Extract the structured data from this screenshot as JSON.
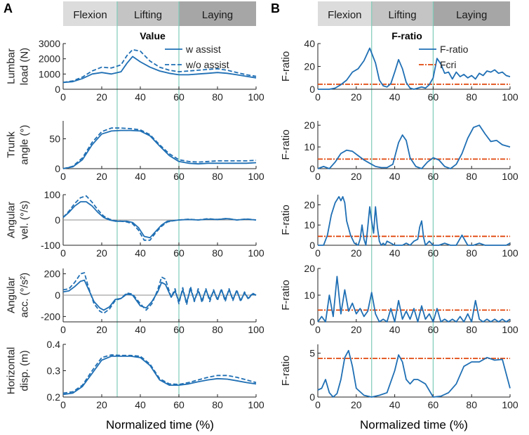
{
  "panel_labels": [
    "A",
    "B"
  ],
  "phases": [
    {
      "label": "Flexion",
      "color": "#dcdcdc"
    },
    {
      "label": "Lifting",
      "color": "#c4c4c4"
    },
    {
      "label": "Laying",
      "color": "#a6a6a6"
    }
  ],
  "x_axis_label": "Normalized time (%)",
  "colors": {
    "assist": "#1f6fb4",
    "fcri": "#e0470c",
    "phase_line": "#7ecbb8",
    "zero_line": "#8c8c8c"
  },
  "chart_data": [
    {
      "type": "line",
      "title": "Value",
      "ylabel": [
        "Lumbar",
        "load (N)"
      ],
      "xlim": [
        0,
        100
      ],
      "ylim": [
        0,
        3000
      ],
      "yticks": [
        0,
        1000,
        2000,
        3000
      ],
      "xticks": [
        0,
        20,
        40,
        60,
        80,
        100
      ],
      "legend": "top-right",
      "legend_entries": [
        "w assist",
        "w/o assist"
      ],
      "x": [
        0,
        5,
        10,
        15,
        20,
        25,
        30,
        33,
        36,
        40,
        45,
        50,
        55,
        60,
        65,
        70,
        75,
        80,
        85,
        90,
        95,
        100
      ],
      "series": [
        {
          "name": "w assist",
          "dash": false,
          "values": [
            450,
            500,
            700,
            1000,
            1100,
            1000,
            1150,
            1700,
            2150,
            1800,
            1450,
            1200,
            1050,
            950,
            950,
            1000,
            1050,
            1100,
            1050,
            950,
            850,
            750
          ]
        },
        {
          "name": "w/o assist",
          "dash": true,
          "values": [
            450,
            550,
            800,
            1200,
            1450,
            1400,
            1600,
            2200,
            2600,
            2500,
            1850,
            1450,
            1250,
            1150,
            1200,
            1250,
            1300,
            1350,
            1250,
            1100,
            950,
            850
          ]
        }
      ]
    },
    {
      "type": "line",
      "ylabel": [
        "Trunk",
        "angle (°)"
      ],
      "xlim": [
        0,
        100
      ],
      "ylim": [
        0,
        80
      ],
      "yticks": [
        0,
        50
      ],
      "xticks": [
        0,
        20,
        40,
        60,
        80,
        100
      ],
      "x": [
        0,
        5,
        10,
        15,
        20,
        25,
        30,
        35,
        40,
        45,
        50,
        55,
        60,
        65,
        70,
        75,
        80,
        85,
        90,
        95,
        100
      ],
      "series": [
        {
          "name": "w assist",
          "dash": false,
          "values": [
            0,
            3,
            15,
            40,
            58,
            63,
            64,
            64,
            63,
            55,
            38,
            22,
            12,
            9,
            8,
            9,
            9,
            9,
            9,
            9,
            10
          ]
        },
        {
          "name": "w/o assist",
          "dash": true,
          "values": [
            0,
            4,
            18,
            44,
            62,
            68,
            68,
            67,
            65,
            57,
            40,
            25,
            15,
            12,
            11,
            12,
            13,
            13,
            13,
            13,
            14
          ]
        }
      ]
    },
    {
      "type": "line",
      "ylabel": [
        "Angular",
        "vel. (°/s)"
      ],
      "xlim": [
        0,
        100
      ],
      "ylim": [
        -100,
        100
      ],
      "yticks": [
        -100,
        0,
        100
      ],
      "xticks": [
        0,
        20,
        40,
        60,
        80,
        100
      ],
      "zero_line": true,
      "x": [
        0,
        3,
        6,
        9,
        12,
        15,
        18,
        21,
        24,
        27,
        30,
        33,
        36,
        39,
        42,
        45,
        48,
        51,
        54,
        57,
        60,
        65,
        70,
        75,
        80,
        85,
        90,
        95,
        100
      ],
      "series": [
        {
          "name": "w assist",
          "dash": false,
          "values": [
            10,
            30,
            55,
            72,
            72,
            55,
            30,
            10,
            0,
            -5,
            -5,
            -5,
            -10,
            -30,
            -65,
            -70,
            -45,
            -20,
            -5,
            -3,
            0,
            2,
            0,
            3,
            2,
            5,
            0,
            3,
            0
          ]
        },
        {
          "name": "w/o assist",
          "dash": true,
          "values": [
            10,
            35,
            65,
            88,
            95,
            70,
            40,
            15,
            3,
            -3,
            -5,
            -8,
            -15,
            -40,
            -80,
            -80,
            -50,
            -25,
            -8,
            -3,
            0,
            3,
            0,
            5,
            2,
            6,
            0,
            4,
            0
          ]
        }
      ]
    },
    {
      "type": "line",
      "ylabel": [
        "Angular",
        "acc. (°/s²)"
      ],
      "xlim": [
        0,
        100
      ],
      "ylim": [
        -250,
        250
      ],
      "yticks": [
        -200,
        0,
        200
      ],
      "xticks": [
        0,
        20,
        40,
        60,
        80,
        100
      ],
      "zero_line": true,
      "x": [
        0,
        3,
        6,
        9,
        11,
        13,
        16,
        19,
        21,
        24,
        27,
        30,
        33,
        36,
        40,
        43,
        46,
        49,
        51,
        53,
        56,
        58,
        60,
        62,
        64,
        66,
        68,
        70,
        72,
        74,
        76,
        78,
        80,
        82,
        84,
        86,
        88,
        90,
        92,
        94,
        96,
        98,
        100
      ],
      "series": [
        {
          "name": "w assist",
          "dash": false,
          "values": [
            30,
            40,
            80,
            130,
            140,
            60,
            -60,
            -120,
            -140,
            -110,
            -40,
            -30,
            10,
            0,
            -100,
            -120,
            -60,
            30,
            120,
            100,
            -20,
            40,
            -60,
            50,
            -70,
            60,
            -50,
            40,
            -50,
            50,
            -40,
            40,
            -40,
            50,
            -40,
            50,
            -40,
            40,
            -50,
            20,
            -30,
            10,
            0
          ]
        },
        {
          "name": "w/o assist",
          "dash": true,
          "values": [
            50,
            60,
            120,
            200,
            210,
            80,
            -80,
            -150,
            -170,
            -130,
            -50,
            -30,
            20,
            10,
            -80,
            -140,
            -80,
            50,
            170,
            150,
            -20,
            60,
            -80,
            70,
            -90,
            80,
            -60,
            60,
            -70,
            60,
            -60,
            50,
            -50,
            60,
            -60,
            60,
            -50,
            50,
            -60,
            30,
            -40,
            20,
            0
          ]
        }
      ]
    },
    {
      "type": "line",
      "ylabel": [
        "Horizontal",
        "disp. (m)"
      ],
      "xlim": [
        0,
        100
      ],
      "ylim": [
        0.2,
        0.4
      ],
      "yticks": [
        0.2,
        0.3,
        0.4
      ],
      "xticks": [
        0,
        20,
        40,
        60,
        80,
        100
      ],
      "x": [
        0,
        5,
        10,
        15,
        20,
        25,
        30,
        35,
        40,
        45,
        50,
        55,
        60,
        65,
        70,
        75,
        80,
        85,
        90,
        95,
        100
      ],
      "series": [
        {
          "name": "w assist",
          "dash": false,
          "values": [
            0.21,
            0.215,
            0.24,
            0.29,
            0.34,
            0.355,
            0.355,
            0.355,
            0.35,
            0.32,
            0.265,
            0.245,
            0.245,
            0.25,
            0.258,
            0.265,
            0.27,
            0.268,
            0.262,
            0.255,
            0.25
          ]
        },
        {
          "name": "w/o assist",
          "dash": true,
          "values": [
            0.215,
            0.22,
            0.245,
            0.3,
            0.35,
            0.36,
            0.358,
            0.358,
            0.355,
            0.325,
            0.27,
            0.25,
            0.248,
            0.255,
            0.265,
            0.275,
            0.282,
            0.282,
            0.275,
            0.265,
            0.255
          ]
        }
      ]
    },
    {
      "type": "line",
      "title": "F-ratio",
      "ylabel": [
        "F-ratio"
      ],
      "xlim": [
        0,
        100
      ],
      "ylim": [
        0,
        40
      ],
      "yticks": [
        0,
        20,
        40
      ],
      "xticks": [
        0,
        20,
        40,
        60,
        80,
        100
      ],
      "legend": "top-right",
      "legend_entries": [
        "F-ratio",
        "Fcri"
      ],
      "fcri": 4.4,
      "x": [
        0,
        3,
        6,
        9,
        12,
        15,
        18,
        21,
        24,
        27,
        30,
        32,
        34,
        36,
        38,
        40,
        42,
        44,
        46,
        48,
        50,
        52,
        54,
        56,
        58,
        60,
        62,
        64,
        66,
        68,
        70,
        72,
        74,
        76,
        78,
        80,
        82,
        84,
        86,
        88,
        90,
        92,
        94,
        96,
        98,
        100
      ],
      "values": [
        0,
        0,
        0,
        1,
        4,
        8,
        15,
        18,
        25,
        36,
        23,
        8,
        3,
        2,
        5,
        15,
        26,
        18,
        6,
        1,
        0,
        1,
        2,
        1,
        4,
        10,
        27,
        22,
        14,
        15,
        9,
        15,
        11,
        13,
        10,
        12,
        9,
        14,
        12,
        16,
        15,
        17,
        14,
        15,
        12,
        11
      ]
    },
    {
      "type": "line",
      "ylabel": [
        "F-ratio"
      ],
      "xlim": [
        0,
        100
      ],
      "ylim": [
        0,
        22
      ],
      "yticks": [
        0,
        10,
        20
      ],
      "xticks": [
        0,
        20,
        40,
        60,
        80,
        100
      ],
      "fcri": 4.4,
      "x": [
        0,
        3,
        6,
        9,
        12,
        15,
        18,
        21,
        24,
        27,
        30,
        33,
        36,
        39,
        42,
        44,
        46,
        48,
        51,
        54,
        57,
        60,
        63,
        66,
        69,
        72,
        75,
        78,
        81,
        84,
        87,
        90,
        93,
        96,
        100
      ],
      "values": [
        0,
        1,
        0,
        3,
        7,
        8.5,
        8,
        6,
        4,
        2.5,
        1,
        0.5,
        0.5,
        2,
        12,
        15.5,
        13,
        5,
        1,
        0,
        3,
        5,
        4,
        1,
        0,
        2,
        7,
        14,
        19,
        20,
        16,
        12.5,
        13,
        11,
        10
      ]
    },
    {
      "type": "line",
      "ylabel": [
        "F-ratio"
      ],
      "xlim": [
        0,
        100
      ],
      "ylim": [
        0,
        25
      ],
      "yticks": [
        0,
        10,
        20
      ],
      "xticks": [
        0,
        20,
        40,
        60,
        80,
        100
      ],
      "fcri": 4.4,
      "x": [
        0,
        3,
        5,
        7,
        9,
        11,
        12,
        13,
        14,
        15,
        17,
        19,
        21,
        22,
        23,
        24,
        25,
        26,
        27,
        28,
        29,
        30,
        31,
        32,
        33,
        34,
        35,
        36,
        38,
        40,
        42,
        44,
        46,
        48,
        50,
        52,
        53,
        54,
        55,
        56,
        57,
        58,
        60,
        63,
        66,
        69,
        72,
        75,
        78,
        81,
        84,
        87,
        90,
        93,
        96,
        98,
        100
      ],
      "values": [
        0,
        0,
        5,
        15,
        21,
        24,
        22,
        24,
        21,
        12,
        5,
        1,
        0,
        3,
        10,
        3,
        0,
        9,
        19,
        12,
        6,
        19,
        9,
        2,
        0,
        1,
        0,
        2,
        1,
        0,
        0,
        0,
        1,
        0,
        2,
        3,
        9,
        12,
        4,
        0,
        1,
        2,
        0,
        0,
        1,
        0,
        0,
        5,
        0,
        0,
        1,
        0,
        0,
        0,
        0,
        0,
        1
      ]
    },
    {
      "type": "line",
      "ylabel": [
        "F-ratio"
      ],
      "xlim": [
        0,
        100
      ],
      "ylim": [
        0,
        20
      ],
      "yticks": [
        0,
        10,
        20
      ],
      "xticks": [
        0,
        20,
        40,
        60,
        80,
        100
      ],
      "fcri": 4.4,
      "x": [
        0,
        2,
        4,
        6,
        8,
        10,
        12,
        14,
        16,
        18,
        20,
        22,
        24,
        26,
        28,
        30,
        32,
        34,
        36,
        38,
        40,
        42,
        44,
        46,
        48,
        50,
        52,
        54,
        56,
        58,
        60,
        62,
        64,
        66,
        68,
        70,
        72,
        74,
        76,
        78,
        80,
        82,
        84,
        86,
        88,
        90,
        92,
        94,
        96,
        98,
        100
      ],
      "values": [
        0,
        2,
        0,
        10,
        2,
        17,
        3,
        12,
        4,
        7,
        3,
        5,
        2,
        4,
        11,
        3,
        0,
        1,
        0,
        5,
        0,
        8,
        1,
        4,
        1,
        5,
        0,
        6,
        1,
        3,
        0,
        5,
        0,
        1,
        0,
        1,
        0,
        2,
        0,
        3,
        0,
        8,
        1,
        0,
        1,
        0,
        1,
        0,
        1,
        0,
        1
      ]
    },
    {
      "type": "line",
      "ylabel": [
        "F-ratio"
      ],
      "xlim": [
        0,
        100
      ],
      "ylim": [
        0,
        6
      ],
      "yticks": [
        0,
        5
      ],
      "xticks": [
        0,
        20,
        40,
        60,
        80,
        100
      ],
      "fcri": 4.4,
      "x": [
        0,
        2,
        4,
        6,
        8,
        10,
        12,
        14,
        16,
        18,
        20,
        24,
        28,
        32,
        36,
        40,
        42,
        44,
        46,
        48,
        50,
        52,
        56,
        60,
        64,
        68,
        72,
        76,
        80,
        84,
        88,
        92,
        96,
        100
      ],
      "values": [
        0.8,
        1,
        2,
        0.5,
        0,
        0.4,
        2,
        4.5,
        5.3,
        3.5,
        1,
        0.2,
        0,
        0.2,
        0.5,
        3,
        4.8,
        4,
        2,
        1.5,
        2,
        2,
        1.5,
        0,
        0.1,
        0.5,
        1.5,
        3.5,
        4,
        4,
        4.5,
        4.2,
        4.3,
        1
      ]
    }
  ]
}
